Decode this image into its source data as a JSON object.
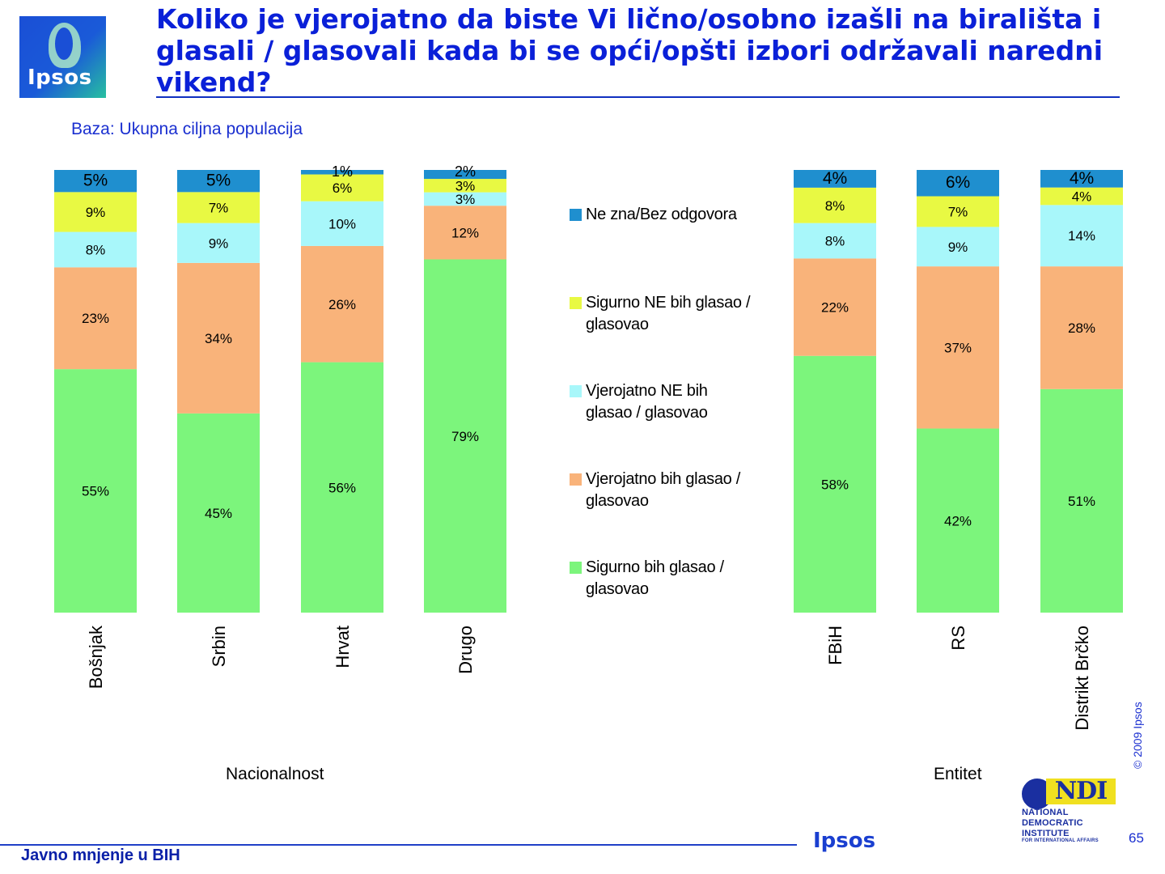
{
  "header": {
    "title": "Koliko je vjerojatno da biste Vi lično/osobno izašli na birališta i glasali / glasovali kada bi se opći/opšti izbori održavali naredni vikend?",
    "logo_text": "Ipsos",
    "subtitle": "Baza: Ukupna ciljna populacija"
  },
  "chart_data": {
    "type": "bar",
    "stacked": true,
    "ylim": [
      0,
      100
    ],
    "categories": [
      "Bošnjak",
      "Srbin",
      "Hrvat",
      "Drugo",
      "FBiH",
      "RS",
      "Distrikt Brčko"
    ],
    "groups": [
      {
        "label": "Nacionalnost",
        "categories": [
          "Bošnjak",
          "Srbin",
          "Hrvat",
          "Drugo"
        ]
      },
      {
        "label": "Entitet",
        "categories": [
          "FBiH",
          "RS",
          "Distrikt Brčko"
        ]
      }
    ],
    "series": [
      {
        "name": "Sigurno bih glasao / glasovao",
        "color": "#7cf57c",
        "values": [
          55,
          45,
          56,
          79,
          58,
          42,
          51
        ]
      },
      {
        "name": "Vjerojatno bih glasao / glasovao",
        "color": "#f9b37a",
        "values": [
          23,
          34,
          26,
          12,
          22,
          37,
          28
        ]
      },
      {
        "name": "Vjerojatno NE bih glasao / glasovao",
        "color": "#a8f7fa",
        "values": [
          8,
          9,
          10,
          3,
          8,
          9,
          14
        ]
      },
      {
        "name": "Sigurno NE bih glasao / glasovao",
        "color": "#e8f943",
        "values": [
          9,
          7,
          6,
          3,
          8,
          7,
          4
        ]
      },
      {
        "name": "Ne zna/Bez odgovora",
        "color": "#1f8fcf",
        "values": [
          5,
          5,
          1,
          2,
          4,
          6,
          4
        ]
      }
    ],
    "legend": [
      {
        "text": "Ne zna/Bez odgovora",
        "color": "#1f8fcf"
      },
      {
        "text": "Sigurno NE bih glasao / glasovao",
        "color": "#e8f943"
      },
      {
        "text": "Vjerojatno NE bih glasao / glasovao",
        "color": "#a8f7fa"
      },
      {
        "text": "Vjerojatno bih glasao / glasovao",
        "color": "#f9b37a"
      },
      {
        "text": "Sigurno bih glasao / glasovao",
        "color": "#7cf57c"
      }
    ]
  },
  "footer": {
    "left_text": "Javno mnjenje u BIH",
    "ipsos_text": "Ipsos",
    "page_number": "65",
    "copyright": "© 2009 Ipsos",
    "ndi_mark": "NDI",
    "ndi_lines": [
      "NATIONAL",
      "DEMOCRATIC",
      "INSTITUTE",
      "FOR INTERNATIONAL AFFAIRS"
    ]
  }
}
